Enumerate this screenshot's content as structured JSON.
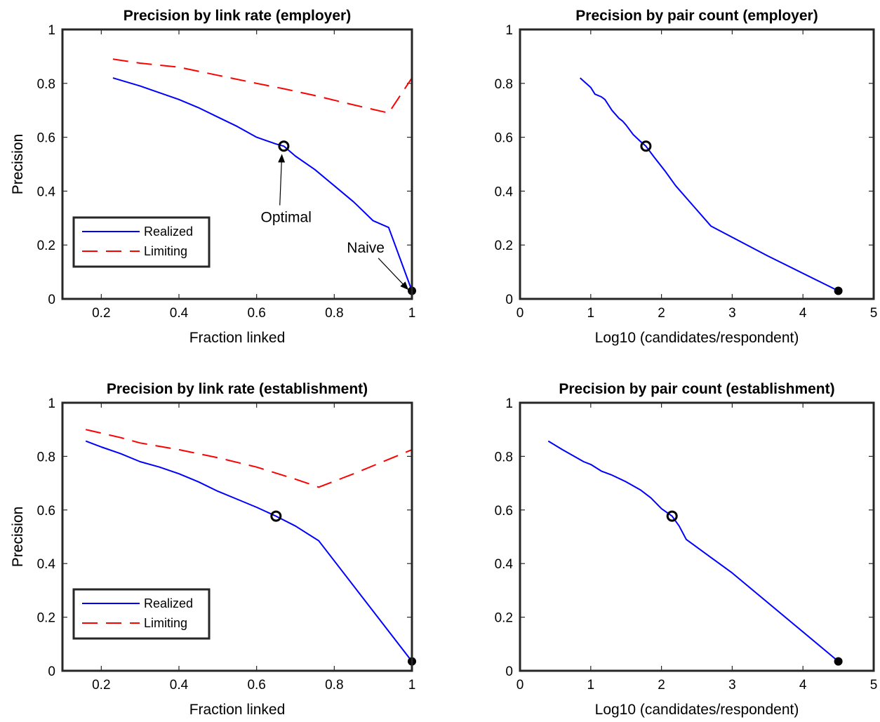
{
  "chart_data": [
    {
      "type": "line",
      "title": "Precision by link rate (employer)",
      "xlabel": "Fraction linked",
      "ylabel": "Precision",
      "xlim": [
        0.1,
        1.0
      ],
      "ylim": [
        0,
        1
      ],
      "xticks": [
        0.2,
        0.4,
        0.6,
        0.8,
        1
      ],
      "xtick_labels": [
        "0.2",
        "0.4",
        "0.6",
        "0.8",
        "1"
      ],
      "yticks": [
        0,
        0.2,
        0.4,
        0.6,
        0.8,
        1
      ],
      "ytick_labels": [
        "0",
        "0.2",
        "0.4",
        "0.6",
        "0.8",
        "1"
      ],
      "grid": false,
      "legend": {
        "position": "bottom-left",
        "entries": [
          "Realized",
          "Limiting"
        ]
      },
      "series": [
        {
          "name": "Realized",
          "color": "#0000ff",
          "style": "solid",
          "x": [
            0.23,
            0.3,
            0.35,
            0.4,
            0.45,
            0.5,
            0.55,
            0.6,
            0.65,
            0.67,
            0.7,
            0.75,
            0.8,
            0.85,
            0.9,
            0.94,
            1.0
          ],
          "y": [
            0.82,
            0.79,
            0.765,
            0.74,
            0.71,
            0.675,
            0.64,
            0.6,
            0.575,
            0.567,
            0.53,
            0.48,
            0.42,
            0.36,
            0.29,
            0.265,
            0.03
          ]
        },
        {
          "name": "Limiting",
          "color": "#ff0000",
          "style": "dashed",
          "x": [
            0.23,
            0.3,
            0.4,
            0.5,
            0.6,
            0.67,
            0.75,
            0.85,
            0.94,
            1.0
          ],
          "y": [
            0.89,
            0.875,
            0.86,
            0.83,
            0.8,
            0.78,
            0.755,
            0.72,
            0.69,
            0.82
          ]
        }
      ],
      "markers": [
        {
          "name": "optimal-marker",
          "x": 0.67,
          "y": 0.567,
          "style": "open-circle"
        },
        {
          "name": "naive-marker",
          "x": 1.0,
          "y": 0.03,
          "style": "filled-circle"
        }
      ],
      "annotations": [
        {
          "text": "Optimal",
          "x": 0.676,
          "y": 0.285,
          "arrow_to": [
            0.665,
            0.535
          ]
        },
        {
          "text": "Naive",
          "x": 0.881,
          "y": 0.172,
          "arrow_to": [
            0.99,
            0.035
          ]
        }
      ]
    },
    {
      "type": "line",
      "title": "Precision by pair count (employer)",
      "xlabel": "Log10 (candidates/respondent)",
      "ylabel": "Precision",
      "xlim": [
        0,
        5
      ],
      "ylim": [
        0,
        1
      ],
      "xticks": [
        0,
        1,
        2,
        3,
        4,
        5
      ],
      "xtick_labels": [
        "0",
        "1",
        "2",
        "3",
        "4",
        "5"
      ],
      "yticks": [
        0,
        0.2,
        0.4,
        0.6,
        0.8,
        1
      ],
      "ytick_labels": [
        "0",
        "0.2",
        "0.4",
        "0.6",
        "0.8",
        "1"
      ],
      "grid": false,
      "series": [
        {
          "color": "#0000ff",
          "style": "solid",
          "x": [
            0.85,
            1.0,
            1.06,
            1.15,
            1.2,
            1.25,
            1.3,
            1.4,
            1.45,
            1.5,
            1.6,
            1.7,
            1.78,
            1.9,
            2.05,
            2.2,
            2.45,
            2.7,
            3.5,
            4.5
          ],
          "y": [
            0.82,
            0.785,
            0.76,
            0.75,
            0.74,
            0.72,
            0.7,
            0.67,
            0.66,
            0.645,
            0.61,
            0.585,
            0.567,
            0.525,
            0.475,
            0.42,
            0.345,
            0.27,
            0.16,
            0.03
          ]
        }
      ],
      "markers": [
        {
          "name": "optimal-marker",
          "x": 1.78,
          "y": 0.567,
          "style": "open-circle"
        },
        {
          "name": "naive-marker",
          "x": 4.5,
          "y": 0.03,
          "style": "filled-circle"
        }
      ]
    },
    {
      "type": "line",
      "title": "Precision by link rate (establishment)",
      "xlabel": "Fraction linked",
      "ylabel": "Precision",
      "xlim": [
        0.1,
        1.0
      ],
      "ylim": [
        0,
        1
      ],
      "xticks": [
        0.2,
        0.4,
        0.6,
        0.8,
        1
      ],
      "xtick_labels": [
        "0.2",
        "0.4",
        "0.6",
        "0.8",
        "1"
      ],
      "yticks": [
        0,
        0.2,
        0.4,
        0.6,
        0.8,
        1
      ],
      "ytick_labels": [
        "0",
        "0.2",
        "0.4",
        "0.6",
        "0.8",
        "1"
      ],
      "grid": false,
      "legend": {
        "position": "bottom-left",
        "entries": [
          "Realized",
          "Limiting"
        ]
      },
      "series": [
        {
          "name": "Realized",
          "color": "#0000ff",
          "style": "solid",
          "x": [
            0.16,
            0.2,
            0.25,
            0.3,
            0.35,
            0.4,
            0.45,
            0.5,
            0.55,
            0.6,
            0.65,
            0.7,
            0.76,
            1.0
          ],
          "y": [
            0.857,
            0.835,
            0.81,
            0.78,
            0.76,
            0.735,
            0.705,
            0.67,
            0.64,
            0.61,
            0.577,
            0.54,
            0.485,
            0.035
          ]
        },
        {
          "name": "Limiting",
          "color": "#ff0000",
          "style": "dashed",
          "x": [
            0.16,
            0.25,
            0.3,
            0.4,
            0.5,
            0.6,
            0.7,
            0.76,
            0.85,
            1.0
          ],
          "y": [
            0.9,
            0.87,
            0.85,
            0.825,
            0.795,
            0.76,
            0.715,
            0.685,
            0.735,
            0.825
          ]
        }
      ],
      "markers": [
        {
          "name": "optimal-marker",
          "x": 0.65,
          "y": 0.577,
          "style": "open-circle"
        },
        {
          "name": "naive-marker",
          "x": 1.0,
          "y": 0.035,
          "style": "filled-circle"
        }
      ]
    },
    {
      "type": "line",
      "title": "Precision by pair count (establishment)",
      "xlabel": "Log10 (candidates/respondent)",
      "ylabel": "Precision",
      "xlim": [
        0,
        5
      ],
      "ylim": [
        0,
        1
      ],
      "xticks": [
        0,
        1,
        2,
        3,
        4,
        5
      ],
      "xtick_labels": [
        "0",
        "1",
        "2",
        "3",
        "4",
        "5"
      ],
      "yticks": [
        0,
        0.2,
        0.4,
        0.6,
        0.8,
        1
      ],
      "ytick_labels": [
        "0",
        "0.2",
        "0.4",
        "0.6",
        "0.8",
        "1"
      ],
      "grid": false,
      "series": [
        {
          "color": "#0000ff",
          "style": "solid",
          "x": [
            0.4,
            0.6,
            0.8,
            0.9,
            1.0,
            1.15,
            1.3,
            1.5,
            1.7,
            1.85,
            2.0,
            2.15,
            2.25,
            2.35,
            3.0,
            4.5
          ],
          "y": [
            0.857,
            0.825,
            0.795,
            0.78,
            0.77,
            0.745,
            0.73,
            0.705,
            0.675,
            0.645,
            0.605,
            0.577,
            0.54,
            0.49,
            0.365,
            0.035
          ]
        }
      ],
      "markers": [
        {
          "name": "optimal-marker",
          "x": 2.15,
          "y": 0.577,
          "style": "open-circle"
        },
        {
          "name": "naive-marker",
          "x": 4.5,
          "y": 0.035,
          "style": "filled-circle"
        }
      ]
    }
  ]
}
